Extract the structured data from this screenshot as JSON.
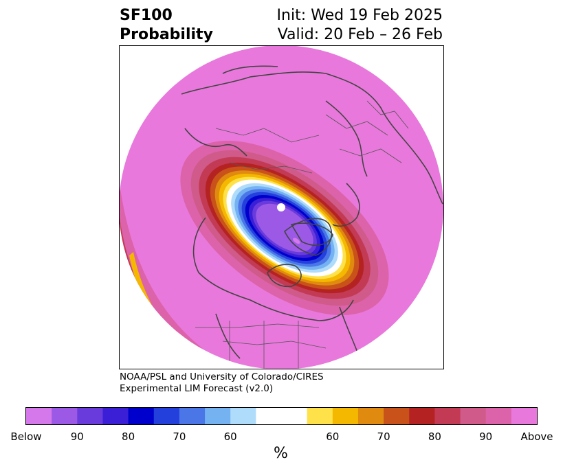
{
  "title": {
    "left_line1": "SF100",
    "left_line2": "Probability",
    "right_line1": "Init: Wed 19 Feb 2025",
    "right_line2": "Valid: 20 Feb – 26 Feb"
  },
  "credit": {
    "line1": "NOAA/PSL and University of Colorado/CIRES",
    "line2": "Experimental LIM Forecast (v2.0)"
  },
  "colorbar": {
    "unit": "%",
    "tick_labels": [
      "Below",
      "90",
      "80",
      "70",
      "60",
      "60",
      "70",
      "80",
      "90",
      "Above"
    ],
    "colors": [
      "#d478eb",
      "#9b59e6",
      "#6a3bdc",
      "#3a1fd6",
      "#0000cc",
      "#2340dd",
      "#4a76e8",
      "#74b2f2",
      "#b0dcfb",
      "#ffffff",
      "#ffe24a",
      "#f5b800",
      "#e08a10",
      "#c8521a",
      "#b52222",
      "#c33a55",
      "#d05a8a",
      "#dc62aa",
      "#e878db"
    ]
  },
  "map": {
    "region": "Northern Hemisphere polar stereographic",
    "fill_color": "#e878db",
    "boundary_color": "#444444"
  }
}
